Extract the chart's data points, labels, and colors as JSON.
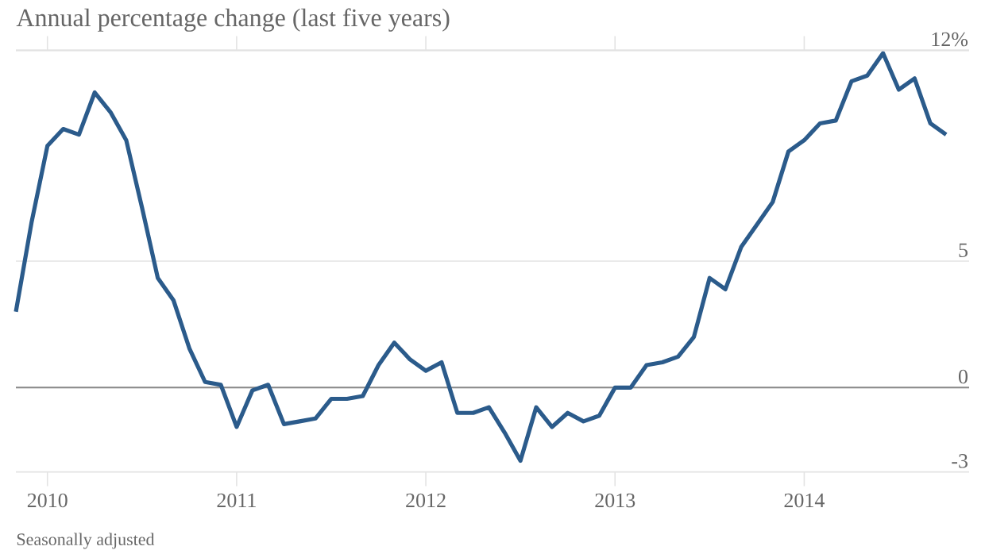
{
  "chart_data": {
    "type": "line",
    "title": "Annual percentage change (last five years)",
    "annotations": [
      "Seasonally adjusted"
    ],
    "x": [
      "2009-11",
      "2009-12",
      "2010-01",
      "2010-02",
      "2010-03",
      "2010-04",
      "2010-05",
      "2010-06",
      "2010-07",
      "2010-08",
      "2010-09",
      "2010-10",
      "2010-11",
      "2010-12",
      "2011-01",
      "2011-02",
      "2011-03",
      "2011-04",
      "2011-05",
      "2011-06",
      "2011-07",
      "2011-08",
      "2011-09",
      "2011-10",
      "2011-11",
      "2011-12",
      "2012-01",
      "2012-02",
      "2012-03",
      "2012-04",
      "2012-05",
      "2012-06",
      "2012-07",
      "2012-08",
      "2012-09",
      "2012-10",
      "2012-11",
      "2012-12",
      "2013-01",
      "2013-02",
      "2013-03",
      "2013-04",
      "2013-05",
      "2013-06",
      "2013-07",
      "2013-08",
      "2013-09",
      "2013-10",
      "2013-11",
      "2013-12",
      "2014-01",
      "2014-02",
      "2014-03",
      "2014-04",
      "2014-05",
      "2014-06",
      "2014-07",
      "2014-08",
      "2014-09",
      "2014-10"
    ],
    "values": [
      2.7,
      5.9,
      8.6,
      9.2,
      9.0,
      10.5,
      9.8,
      8.8,
      6.4,
      3.9,
      3.1,
      1.4,
      0.2,
      0.1,
      -1.4,
      -0.1,
      0.1,
      -1.3,
      -1.2,
      -1.1,
      -0.4,
      -0.4,
      -0.3,
      0.8,
      1.6,
      1.0,
      0.6,
      0.9,
      -0.9,
      -0.9,
      -0.7,
      -1.6,
      -2.6,
      -0.7,
      -1.4,
      -0.9,
      -1.2,
      -1.0,
      0.0,
      0.0,
      0.8,
      0.9,
      1.1,
      1.8,
      3.9,
      3.5,
      5.0,
      5.8,
      6.6,
      8.4,
      8.8,
      9.4,
      9.5,
      10.9,
      11.1,
      11.9,
      10.6,
      11.0,
      9.4,
      9.0
    ],
    "color": "#2b5b8b",
    "xlim": [
      "2009-11",
      "2014-11-15"
    ],
    "xticks": [
      "2010",
      "2011",
      "2012",
      "2013",
      "2014"
    ],
    "ylim": [
      -3,
      12
    ],
    "yticks": [
      -3,
      0,
      {
        "value": 4.5,
        "label": "5"
      },
      {
        "value": 12,
        "label": "12%"
      }
    ],
    "grid": "y",
    "ref_lines": [
      {
        "axis": "y",
        "value": 0,
        "color": "#888888"
      }
    ]
  }
}
